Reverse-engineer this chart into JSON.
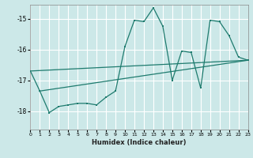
{
  "xlabel": "Humidex (Indice chaleur)",
  "background_color": "#cce8e8",
  "grid_color": "#b0d8d8",
  "line_color": "#1e7b6e",
  "xlim": [
    0,
    23
  ],
  "ylim": [
    -18.6,
    -14.55
  ],
  "yticks": [
    -18,
    -17,
    -16,
    -15
  ],
  "xticks": [
    0,
    1,
    2,
    3,
    4,
    5,
    6,
    7,
    8,
    9,
    10,
    11,
    12,
    13,
    14,
    15,
    16,
    17,
    18,
    19,
    20,
    21,
    22,
    23
  ],
  "main_x": [
    0,
    1,
    2,
    3,
    4,
    5,
    6,
    7,
    8,
    9,
    10,
    11,
    12,
    13,
    14,
    15,
    16,
    17,
    18,
    19,
    20,
    21,
    22,
    23
  ],
  "main_y": [
    -16.7,
    -17.35,
    -18.05,
    -17.85,
    -17.8,
    -17.75,
    -17.75,
    -17.8,
    -17.55,
    -17.35,
    -15.9,
    -15.05,
    -15.1,
    -14.65,
    -15.25,
    -17.0,
    -16.05,
    -16.1,
    -17.25,
    -15.05,
    -15.1,
    -15.55,
    -16.25,
    -16.35
  ],
  "trend1_x": [
    0,
    23
  ],
  "trend1_y": [
    -16.7,
    -16.35
  ],
  "trend2_x": [
    1,
    23
  ],
  "trend2_y": [
    -17.35,
    -16.35
  ]
}
